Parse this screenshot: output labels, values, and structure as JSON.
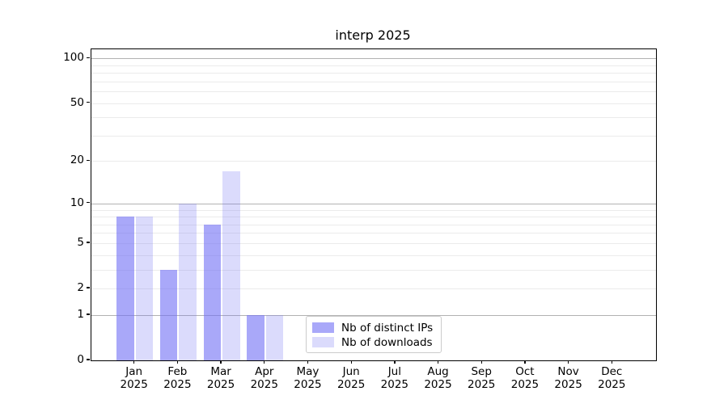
{
  "chart_data": {
    "type": "bar",
    "title": "interp 2025",
    "categories": [
      "Jan",
      "Feb",
      "Mar",
      "Apr",
      "May",
      "Jun",
      "Jul",
      "Aug",
      "Sep",
      "Oct",
      "Nov",
      "Dec"
    ],
    "category_year": "2025",
    "series": [
      {
        "name": "Nb of distinct IPs",
        "key": "ips",
        "color": "rgba(112,110,245,0.6)",
        "color_hex_on_white": "#aaa9f8",
        "values": [
          8,
          3,
          7,
          1,
          0,
          0,
          0,
          0,
          0,
          0,
          0,
          0
        ]
      },
      {
        "name": "Nb of downloads",
        "key": "downloads",
        "color": "rgba(112,110,245,0.25)",
        "color_hex_on_white": "#dcdbf9",
        "values": [
          8,
          10,
          17,
          1,
          0,
          0,
          0,
          0,
          0,
          0,
          0,
          0
        ]
      }
    ],
    "yscale": "log1p",
    "ylim": [
      0,
      115
    ],
    "yticks": [
      0,
      1,
      2,
      5,
      10,
      20,
      50,
      100
    ],
    "grid": {
      "major_values": [
        1,
        10,
        100
      ],
      "minor_values": [
        2,
        3,
        4,
        5,
        6,
        7,
        8,
        9,
        20,
        30,
        40,
        50,
        60,
        70,
        80,
        90
      ],
      "major_color": "#b2b2b2",
      "minor_color": "#ebebeb"
    },
    "legend": {
      "position": "lower-center"
    },
    "spine_color": "#000000",
    "background_color": "#ffffff"
  }
}
